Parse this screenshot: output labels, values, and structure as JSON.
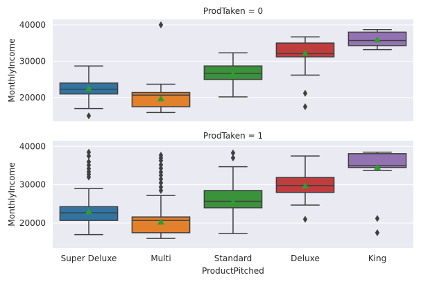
{
  "chart_data": {
    "type": "box",
    "figure": "Box plots of MonthlyIncome by ProductPitched, faceted by ProdTaken",
    "xlabel": "ProductPitched",
    "ylabel": "MonthlyIncome",
    "categories": [
      "Super Deluxe",
      "Multi",
      "Standard",
      "Deluxe",
      "King"
    ],
    "colors": [
      "#3274a1",
      "#e1812c",
      "#3a923a",
      "#c03d3e",
      "#9372b2"
    ],
    "mean_marker": {
      "shape": "triangle",
      "color": "#2ca02c"
    },
    "grid": true,
    "panels": [
      {
        "title": "ProdTaken = 0",
        "ylim": [
          13500,
          41500
        ],
        "yticks": [
          20000,
          30000,
          40000
        ],
        "ytick_labels": [
          "20000",
          "30000",
          "40000"
        ],
        "boxes": [
          {
            "category": "Super Deluxe",
            "whisker_low": 17000,
            "q1": 21000,
            "median": 22300,
            "q3": 24000,
            "whisker_high": 28700,
            "mean": 22500,
            "outliers": [
              15000
            ]
          },
          {
            "category": "Multi",
            "whisker_low": 15900,
            "q1": 17500,
            "median": 20700,
            "q3": 21400,
            "whisker_high": 23700,
            "mean": 19700,
            "outliers": [
              40000
            ]
          },
          {
            "category": "Standard",
            "whisker_low": 20200,
            "q1": 25000,
            "median": 26700,
            "q3": 28700,
            "whisker_high": 32300,
            "mean": 26500,
            "outliers": []
          },
          {
            "category": "Deluxe",
            "whisker_low": 26200,
            "q1": 31200,
            "median": 32100,
            "q3": 35000,
            "whisker_high": 36700,
            "mean": 32200,
            "outliers": [
              21200,
              17500
            ]
          },
          {
            "category": "King",
            "whisker_low": 33200,
            "q1": 34300,
            "median": 35700,
            "q3": 38000,
            "whisker_high": 38700,
            "mean": 35900,
            "outliers": []
          }
        ]
      },
      {
        "title": "ProdTaken = 1",
        "ylim": [
          13500,
          41500
        ],
        "yticks": [
          20000,
          30000,
          40000
        ],
        "ytick_labels": [
          "20000",
          "30000",
          "40000"
        ],
        "boxes": [
          {
            "category": "Super Deluxe",
            "whisker_low": 17000,
            "q1": 20700,
            "median": 22700,
            "q3": 24300,
            "whisker_high": 29000,
            "mean": 23000,
            "outliers": [
              32000,
              32700,
              33400,
              34200,
              35100,
              36000,
              37500,
              38500
            ]
          },
          {
            "category": "Multi",
            "whisker_low": 16000,
            "q1": 17500,
            "median": 20700,
            "q3": 21600,
            "whisker_high": 27200,
            "mean": 20300,
            "outliers": [
              28500,
              29400,
              30500,
              31500,
              32500,
              33300,
              34300,
              35200,
              36300,
              37000,
              37700
            ]
          },
          {
            "category": "Standard",
            "whisker_low": 17300,
            "q1": 24000,
            "median": 25700,
            "q3": 28500,
            "whisker_high": 34700,
            "mean": 25600,
            "outliers": [
              37000,
              38300
            ]
          },
          {
            "category": "Deluxe",
            "whisker_low": 24700,
            "q1": 28000,
            "median": 29800,
            "q3": 31900,
            "whisker_high": 37500,
            "mean": 29700,
            "outliers": [
              21000
            ]
          },
          {
            "category": "King",
            "whisker_low": 33700,
            "q1": 34500,
            "median": 35000,
            "q3": 38100,
            "whisker_high": 38500,
            "mean": 34600,
            "outliers": [
              21200,
              17500
            ]
          }
        ]
      }
    ]
  }
}
